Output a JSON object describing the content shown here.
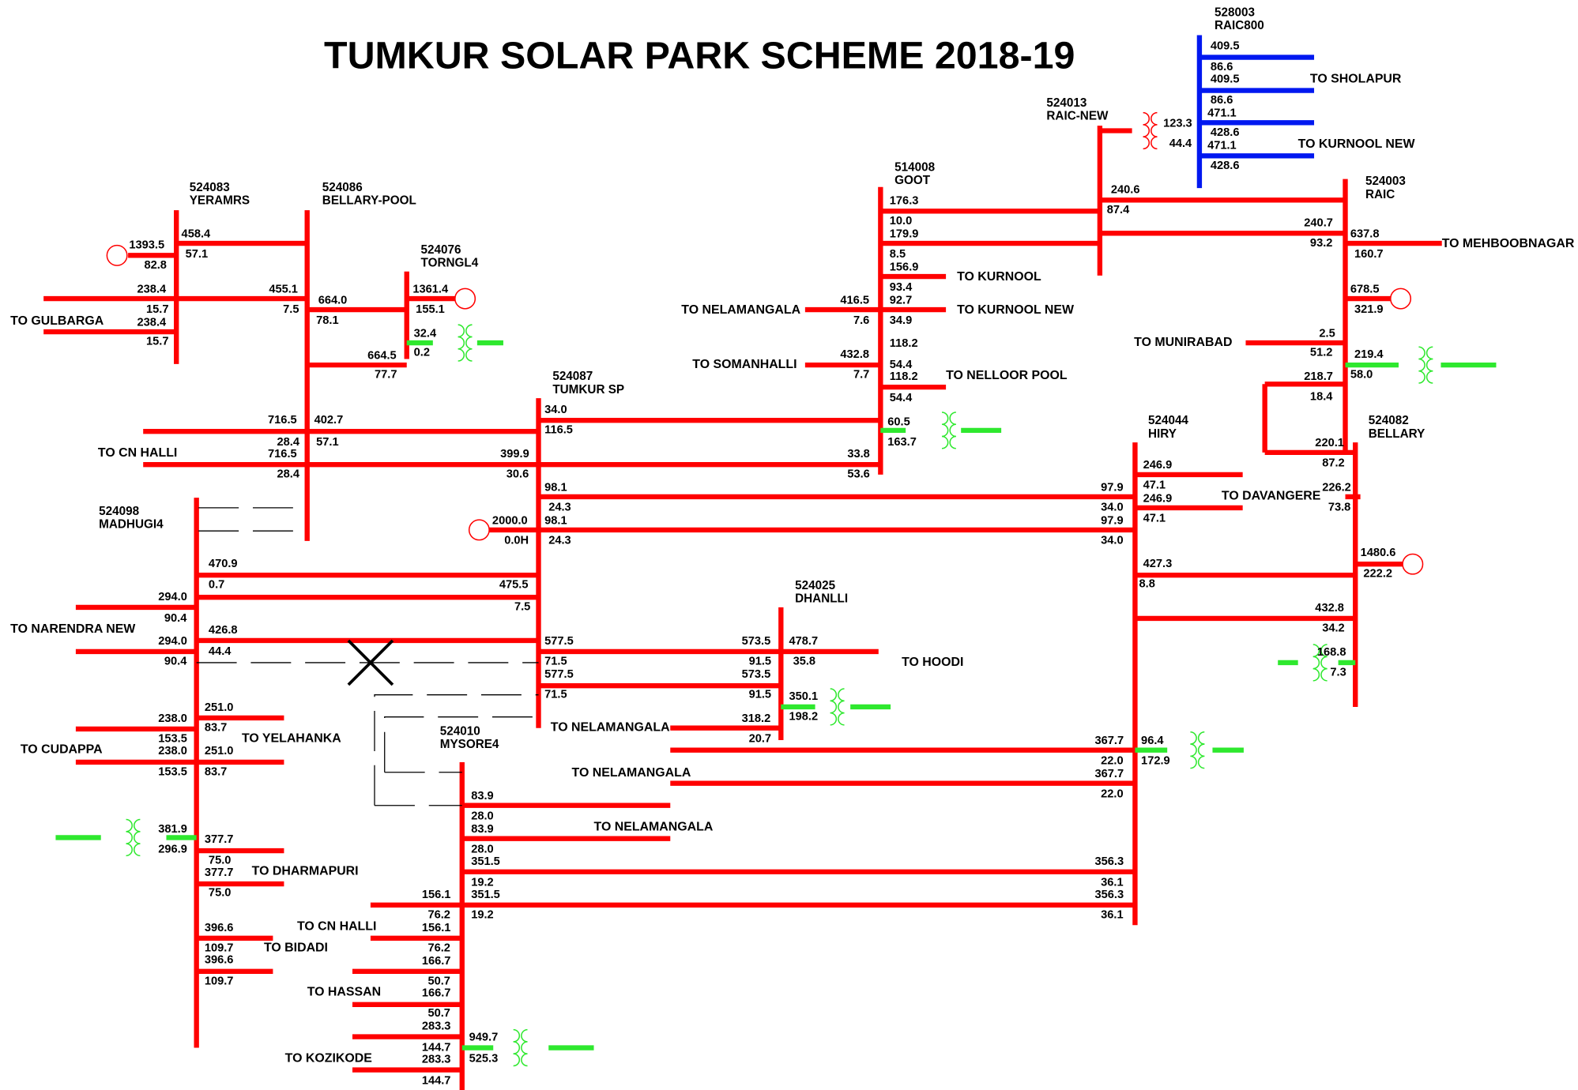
{
  "title": "TUMKUR SOLAR PARK SCHEME 2018-19",
  "buses": [
    {
      "number": "524083",
      "name": "YERAMRS"
    },
    {
      "number": "524086",
      "name": "BELLARY-POOL"
    },
    {
      "number": "524076",
      "name": "TORNGL4"
    },
    {
      "number": "524087",
      "name": "TUMKUR SP"
    },
    {
      "number": "514008",
      "name": "GOOT"
    },
    {
      "number": "524013",
      "name": "RAIC-NEW"
    },
    {
      "number": "528003",
      "name": "RAIC800"
    },
    {
      "number": "524003",
      "name": "RAIC"
    },
    {
      "number": "524044",
      "name": "HIRY"
    },
    {
      "number": "524082",
      "name": "BELLARY"
    },
    {
      "number": "524098",
      "name": "MADHUGI4"
    },
    {
      "number": "524025",
      "name": "DHANLLI"
    },
    {
      "number": "524010",
      "name": "MYSORE4"
    }
  ],
  "destinations": [
    "TO GULBARGA",
    "TO CN HALLI",
    "TO NARENDRA NEW",
    "TO CUDAPPA",
    "TO YELAHANKA",
    "TO DHARMAPURI",
    "TO CN HALLI",
    "TO BIDADI",
    "TO HASSAN",
    "TO KOZIKODE",
    "TO NELAMANGALA",
    "TO SOMANHALLI",
    "TO KURNOOL",
    "TO KURNOOL NEW",
    "TO NELLOOR POOL",
    "TO HOODI",
    "TO NELAMANGALA",
    "TO NELAMANGALA",
    "TO NELAMANGALA",
    "TO DAVANGERE",
    "TO MUNIRABAD",
    "TO MEHBOOBNAGAR",
    "TO SHOLAPUR",
    "TO KURNOOL NEW"
  ],
  "flows": [
    "1393.5",
    "82.8",
    "458.4",
    "57.1",
    "238.4",
    "15.7",
    "238.4",
    "15.7",
    "455.1",
    "7.5",
    "664.0",
    "78.1",
    "664.5",
    "77.7",
    "1361.4",
    "155.1",
    "32.4",
    "0.2",
    "716.5",
    "28.4",
    "402.7",
    "57.1",
    "716.5",
    "28.4",
    "34.0",
    "116.5",
    "399.9",
    "30.6",
    "98.1",
    "24.3",
    "2000.0",
    "0.0H",
    "98.1",
    "24.3",
    "475.5",
    "7.5",
    "577.5",
    "71.5",
    "577.5",
    "71.5",
    "176.3",
    "10.0",
    "179.9",
    "8.5",
    "156.9",
    "93.4",
    "92.7",
    "34.9",
    "416.5",
    "7.6",
    "432.8",
    "7.7",
    "118.2",
    "54.4",
    "118.2",
    "54.4",
    "60.5",
    "163.7",
    "33.8",
    "53.6",
    "240.6",
    "87.4",
    "123.3",
    "44.4",
    "409.5",
    "86.6",
    "409.5",
    "86.6",
    "471.1",
    "428.6",
    "471.1",
    "428.6",
    "240.7",
    "93.2",
    "637.8",
    "160.7",
    "678.5",
    "321.9",
    "2.5",
    "51.2",
    "219.4",
    "58.0",
    "218.7",
    "18.4",
    "220.1",
    "87.2",
    "226.2",
    "73.8",
    "1480.6",
    "222.2",
    "432.8",
    "34.2",
    "168.8",
    "7.3",
    "246.9",
    "47.1",
    "246.9",
    "47.1",
    "97.9",
    "34.0",
    "97.9",
    "34.0",
    "427.3",
    "8.8",
    "367.7",
    "22.0",
    "96.4",
    "172.9",
    "367.7",
    "22.0",
    "356.3",
    "36.1",
    "356.3",
    "36.1",
    "470.9",
    "0.7",
    "294.0",
    "90.4",
    "426.8",
    "44.4",
    "294.0",
    "90.4",
    "251.0",
    "83.7",
    "238.0",
    "153.5",
    "238.0",
    "153.5",
    "251.0",
    "83.7",
    "381.9",
    "296.9",
    "377.7",
    "75.0",
    "377.7",
    "75.0",
    "396.6",
    "109.7",
    "396.6",
    "109.7",
    "573.5",
    "91.5",
    "478.7",
    "35.8",
    "573.5",
    "91.5",
    "350.1",
    "198.2",
    "318.2",
    "20.7",
    "83.9",
    "28.0",
    "83.9",
    "28.0",
    "351.5",
    "19.2",
    "351.5",
    "19.2",
    "156.1",
    "76.2",
    "156.1",
    "76.2",
    "166.7",
    "50.7",
    "166.7",
    "50.7",
    "283.3",
    "144.7",
    "949.7",
    "525.3",
    "283.3",
    "144.7"
  ]
}
